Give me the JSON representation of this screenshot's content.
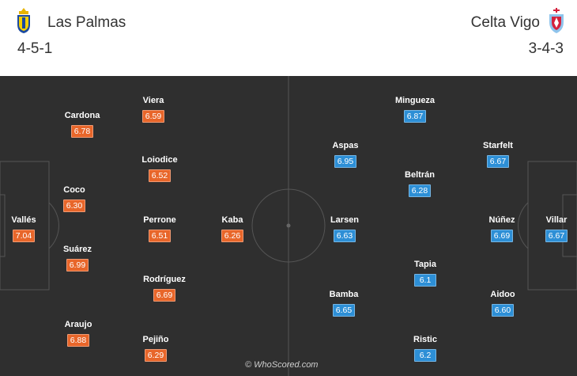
{
  "home": {
    "name": "Las Palmas",
    "formation": "4-5-1",
    "rating_color": "#e8662a",
    "crest_icon": "las-palmas-crest-icon",
    "players": [
      {
        "id": "valles",
        "name": "Vallés",
        "rating": "7.04"
      },
      {
        "id": "cardona",
        "name": "Cardona",
        "rating": "6.78"
      },
      {
        "id": "coco",
        "name": "Coco",
        "rating": "6.30"
      },
      {
        "id": "suarez",
        "name": "Suárez",
        "rating": "6.99"
      },
      {
        "id": "araujo",
        "name": "Araujo",
        "rating": "6.88"
      },
      {
        "id": "viera",
        "name": "Viera",
        "rating": "6.59"
      },
      {
        "id": "loiodice",
        "name": "Loiodice",
        "rating": "6.52"
      },
      {
        "id": "perrone",
        "name": "Perrone",
        "rating": "6.51"
      },
      {
        "id": "rodriguez",
        "name": "Rodríguez",
        "rating": "6.69"
      },
      {
        "id": "pejino",
        "name": "Pejiño",
        "rating": "6.29"
      },
      {
        "id": "kaba",
        "name": "Kaba",
        "rating": "6.26"
      }
    ]
  },
  "away": {
    "name": "Celta Vigo",
    "formation": "3-4-3",
    "rating_color": "#2d8fd6",
    "crest_icon": "celta-vigo-crest-icon",
    "players": [
      {
        "id": "villar",
        "name": "Villar",
        "rating": "6.67"
      },
      {
        "id": "starfelt",
        "name": "Starfelt",
        "rating": "6.67"
      },
      {
        "id": "nunez",
        "name": "Núñez",
        "rating": "6.69"
      },
      {
        "id": "aidoo",
        "name": "Aidoo",
        "rating": "6.60"
      },
      {
        "id": "minguez",
        "name": "Mingueza",
        "rating": "6.87"
      },
      {
        "id": "beltran",
        "name": "Beltrán",
        "rating": "6.28"
      },
      {
        "id": "tapia",
        "name": "Tapia",
        "rating": "6.1"
      },
      {
        "id": "ristic",
        "name": "Ristic",
        "rating": "6.2"
      },
      {
        "id": "aspas",
        "name": "Aspas",
        "rating": "6.95"
      },
      {
        "id": "larsen",
        "name": "Larsen",
        "rating": "6.63"
      },
      {
        "id": "bamba",
        "name": "Bamba",
        "rating": "6.65"
      }
    ]
  },
  "pitch": {
    "background": "#2f2f2f",
    "line_color": "#555555"
  },
  "watermark": "© WhoScored.com"
}
